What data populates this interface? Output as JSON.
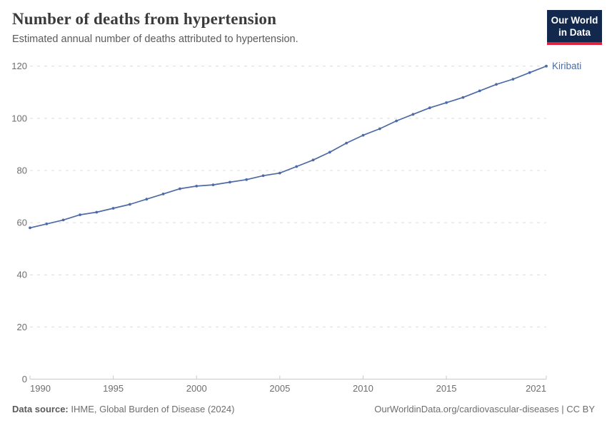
{
  "header": {
    "title": "Number of deaths from hypertension",
    "subtitle": "Estimated annual number of deaths attributed to hypertension.",
    "logo": {
      "line1": "Our World",
      "line2": "in Data",
      "bg_color": "#12294d",
      "accent_color": "#e0233c"
    }
  },
  "chart_data": {
    "type": "line",
    "title": "Number of deaths from hypertension",
    "x": [
      1990,
      1991,
      1992,
      1993,
      1994,
      1995,
      1996,
      1997,
      1998,
      1999,
      2000,
      2001,
      2002,
      2003,
      2004,
      2005,
      2006,
      2007,
      2008,
      2009,
      2010,
      2011,
      2012,
      2013,
      2014,
      2015,
      2016,
      2017,
      2018,
      2019,
      2020,
      2021
    ],
    "series": [
      {
        "name": "Kiribati",
        "color": "#4c6ba5",
        "values": [
          58,
          59.5,
          61,
          63,
          64,
          65.5,
          67,
          69,
          71,
          73,
          74,
          74.5,
          75.5,
          76.5,
          78,
          79,
          81.5,
          84,
          87,
          90.5,
          93.5,
          96,
          99,
          101.5,
          104,
          106,
          108,
          110.5,
          113,
          115,
          117.5,
          120
        ]
      }
    ],
    "xlabel": "",
    "ylabel": "",
    "ylim": [
      0,
      120
    ],
    "xlim": [
      1990,
      2021
    ],
    "yticks": [
      0,
      20,
      40,
      60,
      80,
      100,
      120
    ],
    "xticks": [
      1990,
      1995,
      2000,
      2005,
      2010,
      2015,
      2021
    ],
    "grid": "horizontal-dashed",
    "legend_position": "end-of-line-label",
    "entity_label": "Kiribati",
    "axis_color": "#c8c8c8",
    "grid_color": "#dcdcdc",
    "tick_label_color": "#6e6e6e"
  },
  "footer": {
    "datasource_label": "Data source:",
    "datasource_value": " IHME, Global Burden of Disease (2024)",
    "link": "OurWorldinData.org/cardiovascular-diseases | CC BY"
  }
}
